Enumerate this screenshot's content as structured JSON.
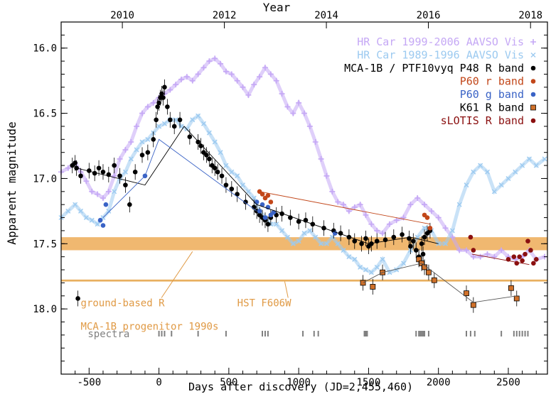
{
  "chart_data": {
    "type": "scatter",
    "title": "",
    "xlabel": "Days after discovery (JD=2,455,460)",
    "ylabel": "Apparent magnitude",
    "top_axis_label": "Year",
    "xlim": [
      -700,
      2780
    ],
    "ylim": [
      18.5,
      15.8
    ],
    "x_ticks": [
      -500,
      0,
      500,
      1000,
      1500,
      2000,
      2500
    ],
    "x_tick_labels": [
      "-500",
      "0",
      "500",
      "1000",
      "1500",
      "2000",
      "2500"
    ],
    "y_ticks": [
      16.0,
      16.5,
      17.0,
      17.5,
      18.0
    ],
    "y_tick_labels": [
      "16.0",
      "16.5",
      "17.0",
      "17.5",
      "18.0"
    ],
    "top_ticks": [
      {
        "label": "2010",
        "day": -262
      },
      {
        "label": "2012",
        "day": 468
      },
      {
        "label": "2014",
        "day": 1198
      },
      {
        "label": "2016",
        "day": 1928
      },
      {
        "label": "2018",
        "day": 2659
      }
    ],
    "bands": [
      {
        "name": "ground-based R",
        "y_from": 17.45,
        "y_to": 17.55,
        "color": "#f0b870"
      },
      {
        "name": "HST F606W",
        "y_from": 17.775,
        "y_to": 17.79,
        "color": "#e8b060"
      }
    ],
    "band_labels": [
      {
        "text": "ground-based R",
        "x": -560,
        "y": 17.98,
        "points_to": [
          240,
          17.56
        ]
      },
      {
        "text": "HST F606W",
        "x": 560,
        "y": 17.98,
        "points_to": [
          900,
          17.79
        ]
      },
      {
        "text": "MCA-1B progenitor 1990s",
        "x": -560,
        "y": 18.16
      }
    ],
    "legend_position": "top-right",
    "series": [
      {
        "name": "HR Car 1999-2006 AAVSO Vis",
        "marker": "+",
        "color": "#c5a8f5",
        "x": [
          -700,
          -650,
          -600,
          -560,
          -520,
          -480,
          -440,
          -400,
          -360,
          -320,
          -280,
          -240,
          -200,
          -160,
          -120,
          -80,
          -40,
          0,
          40,
          80,
          120,
          160,
          200,
          240,
          280,
          320,
          360,
          400,
          440,
          480,
          520,
          560,
          600,
          640,
          680,
          720,
          760,
          800,
          840,
          880,
          920,
          960,
          1000,
          1040,
          1080,
          1120,
          1160,
          1200,
          1240,
          1280,
          1320,
          1360,
          1400,
          1440,
          1480,
          1520,
          1560,
          1600,
          1650,
          1700,
          1750,
          1800,
          1850,
          1900,
          1950,
          2000,
          2050,
          2100,
          2150,
          2200,
          2250,
          2300,
          2350,
          2400,
          2450,
          2500,
          2550,
          2600,
          2650,
          2700,
          2760
        ],
        "y": [
          16.95,
          16.92,
          16.88,
          16.95,
          17.02,
          17.1,
          17.12,
          17.15,
          17.1,
          16.98,
          16.85,
          16.78,
          16.72,
          16.6,
          16.5,
          16.45,
          16.42,
          16.38,
          16.35,
          16.32,
          16.28,
          16.24,
          16.22,
          16.25,
          16.2,
          16.15,
          16.1,
          16.08,
          16.12,
          16.18,
          16.2,
          16.25,
          16.3,
          16.36,
          16.28,
          16.22,
          16.15,
          16.2,
          16.25,
          16.35,
          16.45,
          16.5,
          16.42,
          16.5,
          16.6,
          16.72,
          16.85,
          16.98,
          17.1,
          17.18,
          17.2,
          17.25,
          17.22,
          17.2,
          17.28,
          17.35,
          17.4,
          17.42,
          17.35,
          17.32,
          17.3,
          17.2,
          17.15,
          17.2,
          17.25,
          17.3,
          17.38,
          17.45,
          17.55,
          17.55,
          17.6,
          17.6,
          17.58,
          17.6,
          17.55,
          17.6,
          17.62,
          17.6,
          17.55,
          17.62,
          17.6
        ]
      },
      {
        "name": "HR Car 1989-1996 AAVSO Vis",
        "marker": "x",
        "color": "#9ccaf0",
        "x": [
          -700,
          -650,
          -600,
          -560,
          -520,
          -480,
          -440,
          -400,
          -360,
          -320,
          -280,
          -240,
          -200,
          -160,
          -120,
          -80,
          -40,
          0,
          40,
          80,
          120,
          160,
          200,
          240,
          280,
          320,
          360,
          400,
          440,
          480,
          520,
          560,
          600,
          640,
          680,
          720,
          760,
          800,
          840,
          880,
          920,
          960,
          1000,
          1040,
          1080,
          1120,
          1160,
          1200,
          1240,
          1280,
          1320,
          1360,
          1400,
          1440,
          1480,
          1520,
          1560,
          1600,
          1650,
          1700,
          1750,
          1800,
          1850,
          1900,
          1950,
          2000,
          2050,
          2100,
          2150,
          2200,
          2250,
          2300,
          2350,
          2400,
          2450,
          2500,
          2550,
          2600,
          2650,
          2700,
          2760
        ],
        "y": [
          17.3,
          17.25,
          17.2,
          17.25,
          17.3,
          17.32,
          17.35,
          17.3,
          17.25,
          17.1,
          17.0,
          16.95,
          16.85,
          16.78,
          16.72,
          16.7,
          16.65,
          16.6,
          16.58,
          16.55,
          16.55,
          16.6,
          16.62,
          16.55,
          16.52,
          16.58,
          16.65,
          16.72,
          16.8,
          16.9,
          16.95,
          16.98,
          17.05,
          17.1,
          17.15,
          17.25,
          17.3,
          17.35,
          17.35,
          17.4,
          17.45,
          17.5,
          17.48,
          17.42,
          17.4,
          17.45,
          17.5,
          17.5,
          17.45,
          17.5,
          17.55,
          17.6,
          17.62,
          17.68,
          17.7,
          17.72,
          17.68,
          17.62,
          17.72,
          17.7,
          17.65,
          17.55,
          17.45,
          17.38,
          17.4,
          17.5,
          17.5,
          17.4,
          17.2,
          17.05,
          16.95,
          16.9,
          16.95,
          17.1,
          17.05,
          17.0,
          16.95,
          16.9,
          16.85,
          16.9,
          16.85
        ]
      },
      {
        "name": "MCA-1B / PTF10vyq P48 R band",
        "marker": "filled-circle",
        "color": "#000000",
        "x": [
          -620,
          -600,
          -590,
          -580,
          -560,
          -500,
          -460,
          -430,
          -400,
          -360,
          -320,
          -280,
          -240,
          -210,
          -170,
          -120,
          -80,
          -40,
          -20,
          -10,
          0,
          10,
          20,
          30,
          40,
          60,
          80,
          110,
          150,
          220,
          280,
          300,
          320,
          340,
          360,
          380,
          400,
          420,
          450,
          480,
          520,
          560,
          620,
          680,
          700,
          720,
          740,
          760,
          780,
          800,
          840,
          880,
          940,
          1000,
          1050,
          1100,
          1180,
          1250,
          1300,
          1360,
          1400,
          1450,
          1480,
          1500,
          1520,
          1560,
          1620,
          1680,
          1740,
          1790,
          1800,
          1820,
          1840,
          1860,
          1880,
          1890,
          1900,
          1920,
          1940
        ],
        "y": [
          16.9,
          16.88,
          16.92,
          17.92,
          16.98,
          16.94,
          16.96,
          16.92,
          16.95,
          16.97,
          16.9,
          16.98,
          17.05,
          17.2,
          16.95,
          16.82,
          16.8,
          16.7,
          16.55,
          16.45,
          16.42,
          16.38,
          16.35,
          16.38,
          16.3,
          16.45,
          16.55,
          16.6,
          16.55,
          16.68,
          16.72,
          16.75,
          16.8,
          16.82,
          16.85,
          16.9,
          16.92,
          16.95,
          16.98,
          17.05,
          17.08,
          17.12,
          17.18,
          17.22,
          17.25,
          17.28,
          17.3,
          17.32,
          17.35,
          17.3,
          17.28,
          17.27,
          17.3,
          17.33,
          17.32,
          17.35,
          17.38,
          17.4,
          17.42,
          17.45,
          17.48,
          17.5,
          17.46,
          17.52,
          17.5,
          17.48,
          17.47,
          17.45,
          17.43,
          17.46,
          17.52,
          17.48,
          17.55,
          17.6,
          17.5,
          17.58,
          17.45,
          17.42,
          17.4
        ]
      },
      {
        "name": "P60 r band",
        "marker": "filled-circle",
        "color": "#c2471a",
        "x": [
          720,
          740,
          760,
          780,
          800,
          1900,
          1920,
          1940
        ],
        "y": [
          17.1,
          17.12,
          17.15,
          17.13,
          17.18,
          17.28,
          17.3,
          17.38
        ]
      },
      {
        "name": "P60 g band",
        "marker": "filled-circle",
        "color": "#3a63c6",
        "x": [
          -420,
          -400,
          -380,
          -100,
          700,
          720,
          740,
          760,
          780,
          800,
          820,
          1260
        ],
        "y": [
          17.32,
          17.36,
          17.2,
          16.98,
          17.18,
          17.25,
          17.2,
          17.3,
          17.22,
          17.28,
          17.26,
          17.42
        ]
      },
      {
        "name": "K61 R band",
        "marker": "filled-square",
        "color": "#d0712a",
        "x": [
          1460,
          1530,
          1600,
          1860,
          1880,
          1900,
          1930,
          1970,
          2200,
          2250,
          2520,
          2560
        ],
        "y": [
          17.8,
          17.83,
          17.72,
          17.62,
          17.65,
          17.68,
          17.72,
          17.78,
          17.88,
          17.97,
          17.84,
          17.92
        ]
      },
      {
        "name": "sLOTIS R band",
        "marker": "filled-circle",
        "color": "#8b1010",
        "x": [
          2230,
          2250,
          2500,
          2540,
          2560,
          2580,
          2600,
          2620,
          2640,
          2660,
          2680,
          2700
        ],
        "y": [
          17.45,
          17.55,
          17.62,
          17.6,
          17.65,
          17.6,
          17.63,
          17.58,
          17.48,
          17.55,
          17.65,
          17.62
        ]
      }
    ],
    "connecting_lines": [
      {
        "color": "#000000",
        "x": [
          -590,
          -100,
          180,
          700,
          1500,
          1800,
          2000
        ],
        "y": [
          16.92,
          17.05,
          16.6,
          17.2,
          17.5,
          17.45,
          17.5
        ]
      },
      {
        "color": "#3a63c6",
        "x": [
          -400,
          -100,
          0,
          700
        ],
        "y": [
          17.3,
          16.98,
          16.7,
          17.25
        ]
      },
      {
        "color": "#c2471a",
        "x": [
          720,
          1940
        ],
        "y": [
          17.1,
          17.35
        ]
      },
      {
        "color": "#555555",
        "x": [
          1460,
          1600,
          1880,
          2250,
          2560
        ],
        "y": [
          17.8,
          17.72,
          17.65,
          17.95,
          17.9
        ]
      },
      {
        "color": "#8b1010",
        "x": [
          2240,
          2650
        ],
        "y": [
          17.58,
          17.66
        ]
      }
    ],
    "spectra": {
      "label": "spectra",
      "color": "#808080",
      "epochs": [
        0,
        20,
        40,
        90,
        280,
        480,
        740,
        760,
        780,
        1030,
        1110,
        1140,
        1470,
        1480,
        1490,
        1840,
        1860,
        1870,
        1880,
        1890,
        1900,
        1930,
        2200,
        2230,
        2260,
        2450,
        2540,
        2560,
        2580,
        2600,
        2620,
        2640
      ]
    }
  }
}
